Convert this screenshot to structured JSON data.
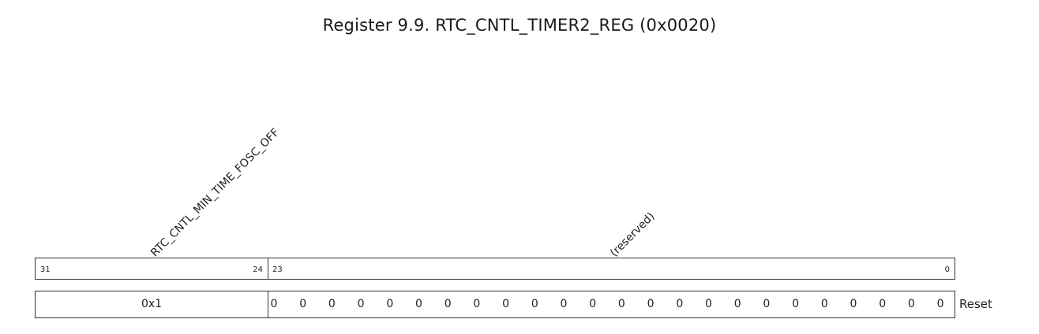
{
  "register": {
    "title": "Register 9.9. RTC_CNTL_TIMER2_REG (0x0020)",
    "fields": [
      {
        "name": "RTC_CNTL_MIN_TIME_FOSC_OFF",
        "msb": "31",
        "lsb": "24",
        "reset": "0x1"
      },
      {
        "name": "(reserved)",
        "msb": "23",
        "lsb": "0",
        "reset": [
          "0",
          "0",
          "0",
          "0",
          "0",
          "0",
          "0",
          "0",
          "0",
          "0",
          "0",
          "0",
          "0",
          "0",
          "0",
          "0",
          "0",
          "0",
          "0",
          "0",
          "0",
          "0",
          "0",
          "0"
        ]
      }
    ],
    "reset_label": "Reset"
  }
}
